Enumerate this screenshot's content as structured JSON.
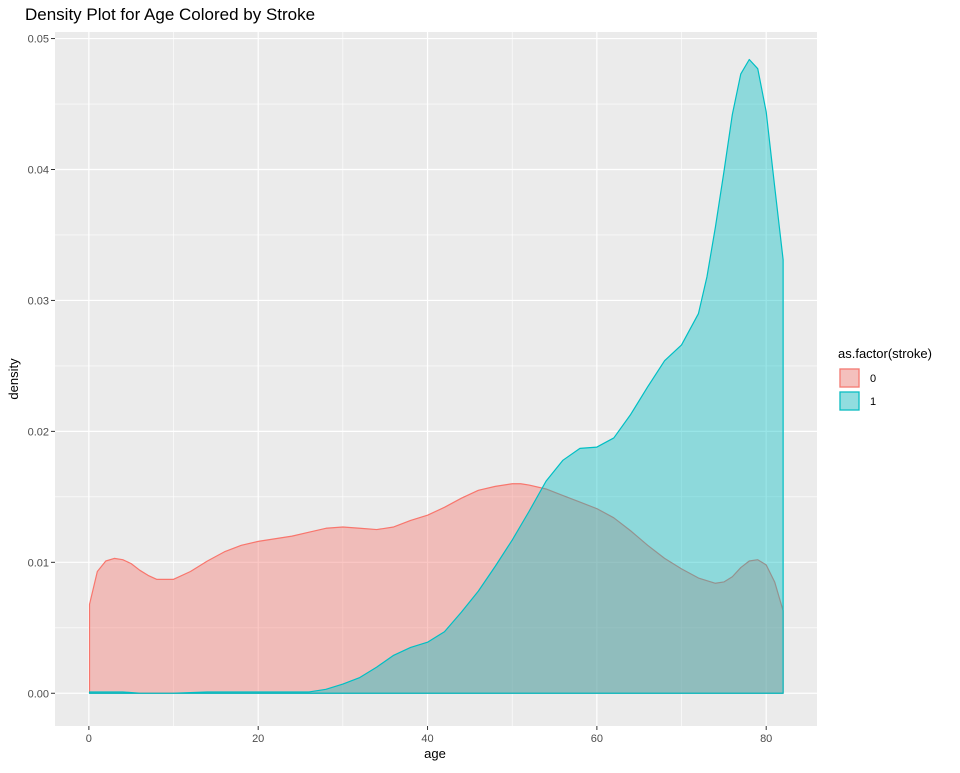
{
  "chart_data": {
    "type": "area",
    "title": "Density Plot for Age Colored by Stroke",
    "xlabel": "age",
    "ylabel": "density",
    "xlim": [
      -4,
      86
    ],
    "ylim": [
      -0.0025,
      0.0505
    ],
    "x_ticks": [
      0,
      20,
      40,
      60,
      80
    ],
    "y_ticks": [
      0.0,
      0.01,
      0.02,
      0.03,
      0.04,
      0.05
    ],
    "x_tick_labels": [
      "0",
      "20",
      "40",
      "60",
      "80"
    ],
    "y_tick_labels": [
      "0.00",
      "0.01",
      "0.02",
      "0.03",
      "0.04",
      "0.05"
    ],
    "grid": true,
    "legend": {
      "title": "as.factor(stroke)",
      "placement": "right"
    },
    "series": [
      {
        "name": "0",
        "line_color": "#F8766D",
        "fill_color": "#F8766D",
        "fill_opacity": 0.4,
        "x": [
          0.08,
          1,
          2,
          3,
          4,
          5,
          6,
          7,
          8,
          10,
          12,
          14,
          16,
          18,
          20,
          22,
          24,
          26,
          28,
          30,
          32,
          34,
          36,
          38,
          40,
          42,
          44,
          46,
          48,
          50,
          51,
          52,
          54,
          56,
          58,
          60,
          62,
          64,
          66,
          68,
          70,
          72,
          74,
          75,
          76,
          77,
          78,
          79,
          80,
          81,
          82
        ],
        "values": [
          0.0068,
          0.0093,
          0.0101,
          0.0103,
          0.0102,
          0.0099,
          0.0094,
          0.009,
          0.0087,
          0.0087,
          0.0093,
          0.0101,
          0.0108,
          0.0113,
          0.0116,
          0.0118,
          0.012,
          0.0123,
          0.0126,
          0.0127,
          0.0126,
          0.0125,
          0.0127,
          0.0132,
          0.0136,
          0.0142,
          0.0149,
          0.0155,
          0.0158,
          0.016,
          0.016,
          0.0159,
          0.0156,
          0.0151,
          0.0146,
          0.0141,
          0.0134,
          0.0124,
          0.0113,
          0.0103,
          0.0095,
          0.0088,
          0.0084,
          0.0085,
          0.0089,
          0.0096,
          0.0101,
          0.0102,
          0.0098,
          0.0085,
          0.0063
        ]
      },
      {
        "name": "1",
        "line_color": "#00BFC4",
        "fill_color": "#00BFC4",
        "fill_opacity": 0.4,
        "x": [
          0.08,
          2,
          4,
          6,
          8,
          10,
          14,
          18,
          22,
          26,
          28,
          30,
          32,
          34,
          36,
          38,
          40,
          42,
          44,
          46,
          48,
          50,
          52,
          54,
          56,
          58,
          60,
          62,
          64,
          66,
          68,
          70,
          72,
          73,
          74,
          75,
          76,
          77,
          78,
          79,
          80,
          81,
          82
        ],
        "values": [
          0.0001,
          0.0001,
          0.0001,
          0.0,
          0.0,
          0.0,
          0.0001,
          0.0001,
          0.0001,
          0.0001,
          0.0003,
          0.0007,
          0.0012,
          0.002,
          0.0029,
          0.0035,
          0.0039,
          0.0047,
          0.0062,
          0.0078,
          0.0097,
          0.0117,
          0.0139,
          0.0162,
          0.0178,
          0.0187,
          0.0188,
          0.0195,
          0.0213,
          0.0234,
          0.0254,
          0.0266,
          0.029,
          0.0318,
          0.0356,
          0.0398,
          0.0442,
          0.0473,
          0.0484,
          0.0477,
          0.0444,
          0.0387,
          0.0331
        ]
      }
    ]
  }
}
